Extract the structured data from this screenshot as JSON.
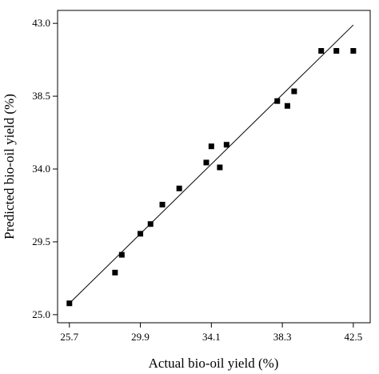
{
  "chart_data": {
    "type": "scatter",
    "xlabel": "Actual bio-oil yield (%)",
    "ylabel": "Predicted bio-oil yield (%)",
    "xlim": [
      25.0,
      43.5
    ],
    "ylim": [
      24.5,
      43.8
    ],
    "x_ticks": [
      25.7,
      29.9,
      34.1,
      38.3,
      42.5
    ],
    "x_tick_labels": [
      "25.7",
      "29.9",
      "34.1",
      "38.3",
      "42.5"
    ],
    "y_ticks": [
      25.0,
      29.5,
      34.0,
      38.5,
      43.0
    ],
    "y_tick_labels": [
      "25.0",
      "29.5",
      "34.0",
      "38.5",
      "43.0"
    ],
    "grid": false,
    "points": [
      {
        "x": 25.7,
        "y": 25.7
      },
      {
        "x": 28.4,
        "y": 27.6
      },
      {
        "x": 28.8,
        "y": 28.7
      },
      {
        "x": 29.9,
        "y": 30.0
      },
      {
        "x": 30.5,
        "y": 30.6
      },
      {
        "x": 31.2,
        "y": 31.8
      },
      {
        "x": 32.2,
        "y": 32.8
      },
      {
        "x": 33.8,
        "y": 34.4
      },
      {
        "x": 34.1,
        "y": 35.4
      },
      {
        "x": 34.6,
        "y": 34.1
      },
      {
        "x": 35.0,
        "y": 35.5
      },
      {
        "x": 38.0,
        "y": 38.2
      },
      {
        "x": 38.6,
        "y": 37.9
      },
      {
        "x": 39.0,
        "y": 38.8
      },
      {
        "x": 40.6,
        "y": 41.3
      },
      {
        "x": 41.5,
        "y": 41.3
      },
      {
        "x": 42.5,
        "y": 41.3
      }
    ],
    "fit_line": {
      "x": [
        25.7,
        42.5
      ],
      "y": [
        25.7,
        42.9
      ]
    },
    "marker": "square",
    "color": "#000000"
  }
}
